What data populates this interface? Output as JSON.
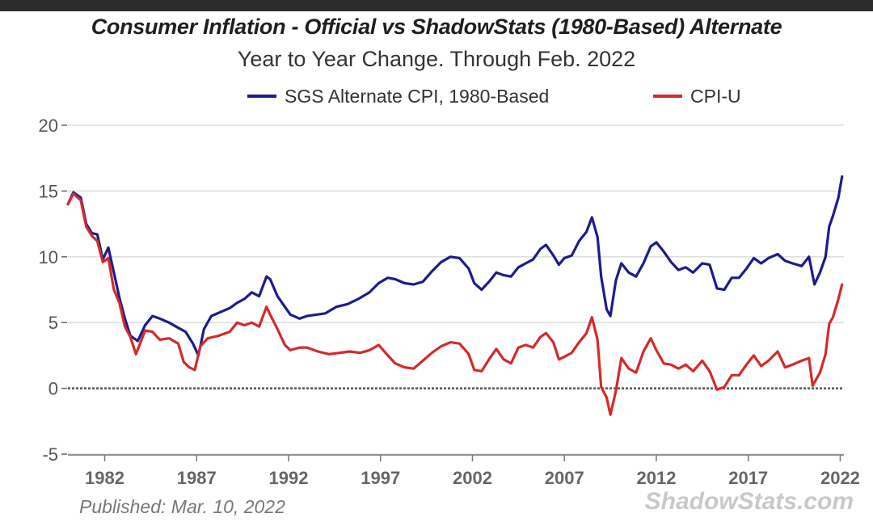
{
  "published": "Published: Mar. 10, 2022",
  "watermark": "ShadowStats.com",
  "colors": {
    "sgs": "#1c1c8e",
    "cpi": "#d42a2a",
    "zero_line": "#555555",
    "grid": "#dddddd"
  },
  "chart_data": {
    "type": "line",
    "title": "Consumer Inflation - Official vs ShadowStats (1980-Based) Alternate",
    "subtitle": "Year to Year Change. Through Feb. 2022",
    "ylim": [
      -5,
      20
    ],
    "yticks": [
      "20",
      "15",
      "10",
      "5",
      "0",
      "-5"
    ],
    "xlim": [
      1980.0,
      2022.2
    ],
    "xticks": [
      "1982",
      "1987",
      "1992",
      "1997",
      "2002",
      "2007",
      "2012",
      "2017",
      "2022"
    ],
    "legend_position": "top",
    "grid": true,
    "series": [
      {
        "name": "SGS Alternate CPI, 1980-Based",
        "color": "#1c1c8e",
        "points": [
          [
            1980.0,
            14.0
          ],
          [
            1980.3,
            14.9
          ],
          [
            1980.7,
            14.5
          ],
          [
            1981.0,
            12.5
          ],
          [
            1981.3,
            11.8
          ],
          [
            1981.6,
            11.7
          ],
          [
            1981.9,
            9.8
          ],
          [
            1982.2,
            10.7
          ],
          [
            1982.5,
            8.8
          ],
          [
            1982.8,
            6.9
          ],
          [
            1983.1,
            5.3
          ],
          [
            1983.4,
            4.0
          ],
          [
            1983.8,
            3.6
          ],
          [
            1984.2,
            4.8
          ],
          [
            1984.6,
            5.5
          ],
          [
            1985.0,
            5.3
          ],
          [
            1985.5,
            5.0
          ],
          [
            1986.0,
            4.6
          ],
          [
            1986.4,
            4.3
          ],
          [
            1986.8,
            3.4
          ],
          [
            1987.1,
            2.5
          ],
          [
            1987.4,
            4.5
          ],
          [
            1987.8,
            5.5
          ],
          [
            1988.3,
            5.8
          ],
          [
            1988.8,
            6.1
          ],
          [
            1989.2,
            6.5
          ],
          [
            1989.6,
            6.8
          ],
          [
            1990.0,
            7.3
          ],
          [
            1990.4,
            7.0
          ],
          [
            1990.8,
            8.5
          ],
          [
            1991.0,
            8.3
          ],
          [
            1991.4,
            7.0
          ],
          [
            1991.8,
            6.2
          ],
          [
            1992.1,
            5.6
          ],
          [
            1992.6,
            5.3
          ],
          [
            1993.0,
            5.5
          ],
          [
            1993.5,
            5.6
          ],
          [
            1994.0,
            5.7
          ],
          [
            1994.6,
            6.2
          ],
          [
            1995.2,
            6.4
          ],
          [
            1995.8,
            6.8
          ],
          [
            1996.4,
            7.3
          ],
          [
            1996.9,
            8.0
          ],
          [
            1997.4,
            8.4
          ],
          [
            1997.8,
            8.3
          ],
          [
            1998.3,
            8.0
          ],
          [
            1998.8,
            7.9
          ],
          [
            1999.3,
            8.1
          ],
          [
            1999.8,
            8.9
          ],
          [
            2000.3,
            9.6
          ],
          [
            2000.8,
            10.0
          ],
          [
            2001.3,
            9.9
          ],
          [
            2001.8,
            9.1
          ],
          [
            2002.1,
            8.0
          ],
          [
            2002.5,
            7.5
          ],
          [
            2002.9,
            8.1
          ],
          [
            2003.3,
            8.8
          ],
          [
            2003.7,
            8.6
          ],
          [
            2004.1,
            8.5
          ],
          [
            2004.5,
            9.2
          ],
          [
            2004.9,
            9.5
          ],
          [
            2005.3,
            9.8
          ],
          [
            2005.7,
            10.6
          ],
          [
            2006.0,
            10.9
          ],
          [
            2006.4,
            10.1
          ],
          [
            2006.7,
            9.4
          ],
          [
            2007.0,
            9.9
          ],
          [
            2007.4,
            10.1
          ],
          [
            2007.8,
            11.2
          ],
          [
            2008.2,
            11.9
          ],
          [
            2008.5,
            13.0
          ],
          [
            2008.8,
            11.5
          ],
          [
            2009.0,
            8.5
          ],
          [
            2009.3,
            6.0
          ],
          [
            2009.5,
            5.5
          ],
          [
            2009.8,
            8.2
          ],
          [
            2010.1,
            9.5
          ],
          [
            2010.5,
            8.8
          ],
          [
            2010.9,
            8.5
          ],
          [
            2011.3,
            9.5
          ],
          [
            2011.7,
            10.8
          ],
          [
            2012.0,
            11.1
          ],
          [
            2012.4,
            10.4
          ],
          [
            2012.8,
            9.6
          ],
          [
            2013.2,
            9.0
          ],
          [
            2013.6,
            9.2
          ],
          [
            2014.0,
            8.8
          ],
          [
            2014.5,
            9.5
          ],
          [
            2014.9,
            9.4
          ],
          [
            2015.3,
            7.6
          ],
          [
            2015.7,
            7.5
          ],
          [
            2016.1,
            8.4
          ],
          [
            2016.5,
            8.4
          ],
          [
            2016.9,
            9.1
          ],
          [
            2017.3,
            9.9
          ],
          [
            2017.7,
            9.5
          ],
          [
            2018.1,
            9.9
          ],
          [
            2018.6,
            10.2
          ],
          [
            2019.0,
            9.7
          ],
          [
            2019.4,
            9.5
          ],
          [
            2019.9,
            9.3
          ],
          [
            2020.3,
            10.0
          ],
          [
            2020.6,
            7.9
          ],
          [
            2020.9,
            8.8
          ],
          [
            2021.2,
            10.0
          ],
          [
            2021.4,
            12.3
          ],
          [
            2021.6,
            13.1
          ],
          [
            2021.9,
            14.5
          ],
          [
            2022.1,
            16.1
          ]
        ]
      },
      {
        "name": "CPI-U",
        "color": "#d42a2a",
        "points": [
          [
            1980.0,
            14.0
          ],
          [
            1980.3,
            14.8
          ],
          [
            1980.7,
            14.3
          ],
          [
            1981.0,
            12.3
          ],
          [
            1981.3,
            11.6
          ],
          [
            1981.6,
            11.2
          ],
          [
            1981.9,
            9.6
          ],
          [
            1982.2,
            9.9
          ],
          [
            1982.5,
            7.5
          ],
          [
            1982.8,
            6.5
          ],
          [
            1983.1,
            4.7
          ],
          [
            1983.4,
            3.9
          ],
          [
            1983.7,
            2.6
          ],
          [
            1984.2,
            4.4
          ],
          [
            1984.6,
            4.3
          ],
          [
            1985.0,
            3.7
          ],
          [
            1985.5,
            3.8
          ],
          [
            1986.0,
            3.4
          ],
          [
            1986.3,
            2.0
          ],
          [
            1986.6,
            1.6
          ],
          [
            1986.9,
            1.4
          ],
          [
            1987.2,
            3.2
          ],
          [
            1987.6,
            3.8
          ],
          [
            1988.2,
            4.0
          ],
          [
            1988.8,
            4.3
          ],
          [
            1989.2,
            5.0
          ],
          [
            1989.6,
            4.8
          ],
          [
            1990.0,
            5.0
          ],
          [
            1990.4,
            4.7
          ],
          [
            1990.8,
            6.2
          ],
          [
            1991.0,
            5.6
          ],
          [
            1991.4,
            4.5
          ],
          [
            1991.8,
            3.3
          ],
          [
            1992.1,
            2.9
          ],
          [
            1992.6,
            3.1
          ],
          [
            1993.0,
            3.1
          ],
          [
            1993.6,
            2.8
          ],
          [
            1994.2,
            2.6
          ],
          [
            1994.8,
            2.7
          ],
          [
            1995.3,
            2.8
          ],
          [
            1995.9,
            2.7
          ],
          [
            1996.4,
            2.9
          ],
          [
            1996.9,
            3.3
          ],
          [
            1997.4,
            2.5
          ],
          [
            1997.8,
            1.9
          ],
          [
            1998.3,
            1.6
          ],
          [
            1998.8,
            1.5
          ],
          [
            1999.3,
            2.1
          ],
          [
            1999.8,
            2.7
          ],
          [
            2000.3,
            3.2
          ],
          [
            2000.8,
            3.5
          ],
          [
            2001.3,
            3.4
          ],
          [
            2001.8,
            2.6
          ],
          [
            2002.1,
            1.4
          ],
          [
            2002.5,
            1.3
          ],
          [
            2002.9,
            2.2
          ],
          [
            2003.3,
            3.0
          ],
          [
            2003.7,
            2.2
          ],
          [
            2004.1,
            1.9
          ],
          [
            2004.5,
            3.1
          ],
          [
            2004.9,
            3.3
          ],
          [
            2005.3,
            3.1
          ],
          [
            2005.7,
            3.9
          ],
          [
            2006.0,
            4.2
          ],
          [
            2006.4,
            3.5
          ],
          [
            2006.7,
            2.2
          ],
          [
            2007.0,
            2.4
          ],
          [
            2007.4,
            2.7
          ],
          [
            2007.8,
            3.5
          ],
          [
            2008.2,
            4.2
          ],
          [
            2008.5,
            5.4
          ],
          [
            2008.8,
            3.7
          ],
          [
            2009.0,
            0.1
          ],
          [
            2009.3,
            -0.7
          ],
          [
            2009.5,
            -2.0
          ],
          [
            2009.8,
            -0.2
          ],
          [
            2010.1,
            2.3
          ],
          [
            2010.5,
            1.5
          ],
          [
            2010.9,
            1.2
          ],
          [
            2011.3,
            2.8
          ],
          [
            2011.7,
            3.8
          ],
          [
            2012.0,
            2.9
          ],
          [
            2012.4,
            1.9
          ],
          [
            2012.8,
            1.8
          ],
          [
            2013.2,
            1.5
          ],
          [
            2013.6,
            1.8
          ],
          [
            2014.0,
            1.3
          ],
          [
            2014.5,
            2.1
          ],
          [
            2014.9,
            1.3
          ],
          [
            2015.3,
            -0.1
          ],
          [
            2015.7,
            0.1
          ],
          [
            2016.1,
            1.0
          ],
          [
            2016.5,
            1.0
          ],
          [
            2016.9,
            1.8
          ],
          [
            2017.3,
            2.5
          ],
          [
            2017.7,
            1.7
          ],
          [
            2018.1,
            2.1
          ],
          [
            2018.6,
            2.8
          ],
          [
            2019.0,
            1.6
          ],
          [
            2019.4,
            1.8
          ],
          [
            2019.9,
            2.1
          ],
          [
            2020.3,
            2.3
          ],
          [
            2020.5,
            0.2
          ],
          [
            2020.9,
            1.2
          ],
          [
            2021.2,
            2.6
          ],
          [
            2021.4,
            4.9
          ],
          [
            2021.6,
            5.4
          ],
          [
            2021.9,
            6.8
          ],
          [
            2022.1,
            7.9
          ]
        ]
      }
    ]
  }
}
